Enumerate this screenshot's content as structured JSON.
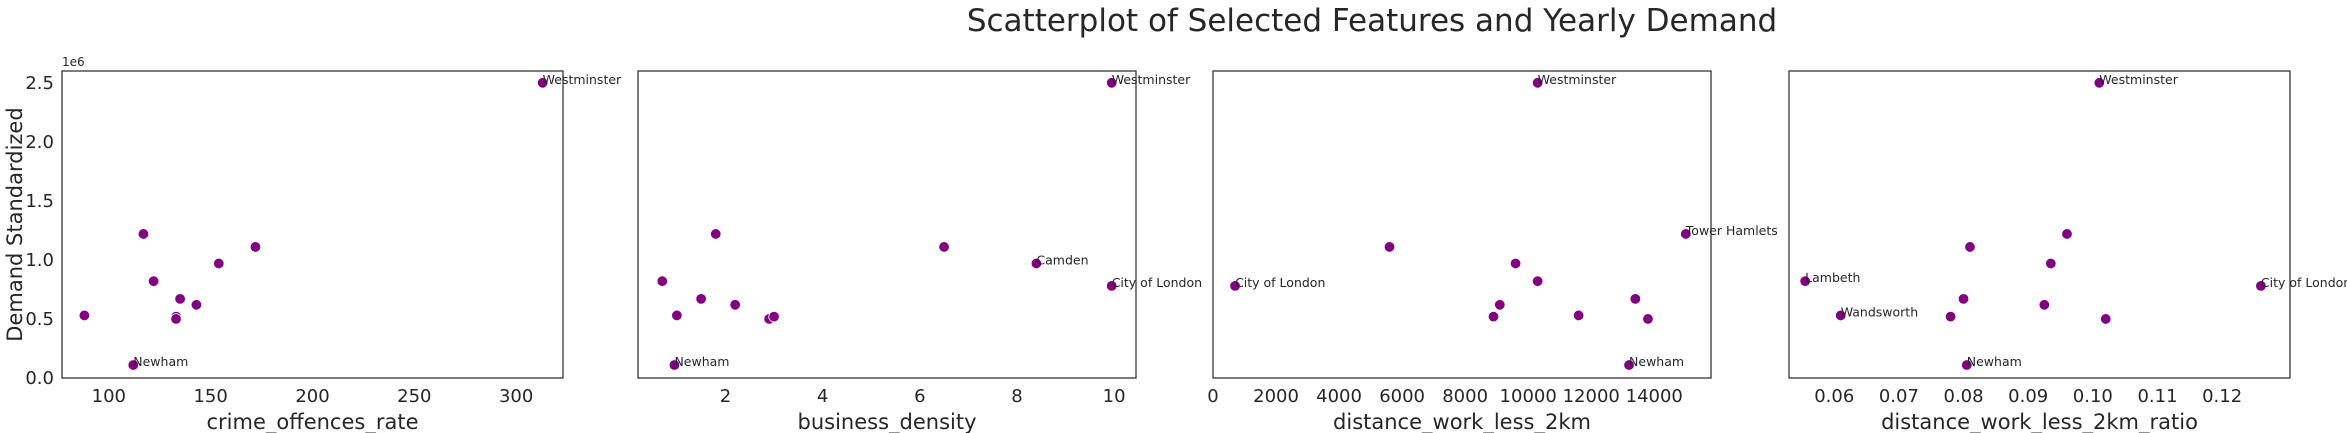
{
  "suptitle": "Scatterplot of Selected Features and Yearly Demand",
  "point_color": "#800080",
  "chart_data": [
    {
      "type": "scatter",
      "xlabel": "crime_offences_rate",
      "ylabel": "Demand Standardized",
      "y_offset_text": "1e6",
      "xlim": [
        77,
        323
      ],
      "ylim": [
        0,
        2.6
      ],
      "xticks": [
        100,
        150,
        200,
        250,
        300
      ],
      "xtick_labels": [
        "100",
        "150",
        "200",
        "250",
        "300"
      ],
      "yticks": [
        0.0,
        0.5,
        1.0,
        1.5,
        2.0,
        2.5
      ],
      "ytick_labels": [
        "0.0",
        "0.5",
        "1.0",
        "1.5",
        "2.0",
        "2.5"
      ],
      "x": [
        313,
        117,
        172,
        122,
        154,
        135,
        88,
        133,
        143,
        133,
        112
      ],
      "y": [
        2.5,
        1.22,
        1.11,
        0.82,
        0.97,
        0.67,
        0.53,
        0.52,
        0.62,
        0.5,
        0.11
      ],
      "labels": [
        "Westminster",
        "",
        "",
        "",
        "",
        "",
        "",
        "",
        "",
        "",
        "Newham"
      ]
    },
    {
      "type": "scatter",
      "xlabel": "business_density",
      "ylabel": "",
      "xlim": [
        0.2,
        10.45
      ],
      "ylim": [
        0,
        2.6
      ],
      "xticks": [
        2,
        4,
        6,
        8,
        10
      ],
      "xtick_labels": [
        "2",
        "4",
        "6",
        "8",
        "10"
      ],
      "x": [
        9.95,
        6.5,
        8.4,
        9.95,
        1.8,
        0.7,
        1.5,
        2.2,
        1.0,
        2.9,
        3.0,
        0.95
      ],
      "y": [
        2.5,
        1.11,
        0.97,
        0.78,
        1.22,
        0.82,
        0.67,
        0.62,
        0.53,
        0.5,
        0.52,
        0.11
      ],
      "labels": [
        "Westminster",
        "",
        "Camden",
        "City of London",
        "",
        "",
        "",
        "",
        "",
        "",
        "",
        "Newham"
      ]
    },
    {
      "type": "scatter",
      "xlabel": "distance_work_less_2km",
      "ylabel": "",
      "xlim": [
        0,
        15800
      ],
      "ylim": [
        0,
        2.6
      ],
      "xticks": [
        0,
        2000,
        4000,
        6000,
        8000,
        10000,
        12000,
        14000
      ],
      "xtick_labels": [
        "0",
        "2000",
        "4000",
        "6000",
        "8000",
        "10000",
        "12000",
        "14000"
      ],
      "x": [
        10300,
        5600,
        15000,
        700,
        9600,
        10300,
        13400,
        9100,
        11600,
        8900,
        13800,
        13200
      ],
      "y": [
        2.5,
        1.11,
        1.22,
        0.78,
        0.97,
        0.82,
        0.67,
        0.62,
        0.53,
        0.52,
        0.5,
        0.11
      ],
      "labels": [
        "Westminster",
        "",
        "Tower Hamlets",
        "City of London",
        "",
        "",
        "",
        "",
        "",
        "",
        "",
        "Newham"
      ]
    },
    {
      "type": "scatter",
      "xlabel": "distance_work_less_2km_ratio",
      "ylabel": "",
      "xlim": [
        0.053,
        0.1305
      ],
      "ylim": [
        0,
        2.6
      ],
      "xticks": [
        0.06,
        0.07,
        0.08,
        0.09,
        0.1,
        0.11,
        0.12
      ],
      "xtick_labels": [
        "0.06",
        "0.07",
        "0.08",
        "0.09",
        "0.10",
        "0.11",
        "0.12"
      ],
      "x": [
        0.101,
        0.0555,
        0.126,
        0.061,
        0.0805,
        0.081,
        0.096,
        0.0935,
        0.0925,
        0.08,
        0.078,
        0.102
      ],
      "y": [
        2.5,
        0.82,
        0.78,
        0.53,
        0.11,
        1.11,
        1.22,
        0.97,
        0.62,
        0.67,
        0.52,
        0.5
      ],
      "labels": [
        "Westminster",
        "Lambeth",
        "City of London",
        "Wandsworth",
        "Newham",
        "",
        "",
        "",
        "",
        "",
        "",
        ""
      ]
    }
  ]
}
